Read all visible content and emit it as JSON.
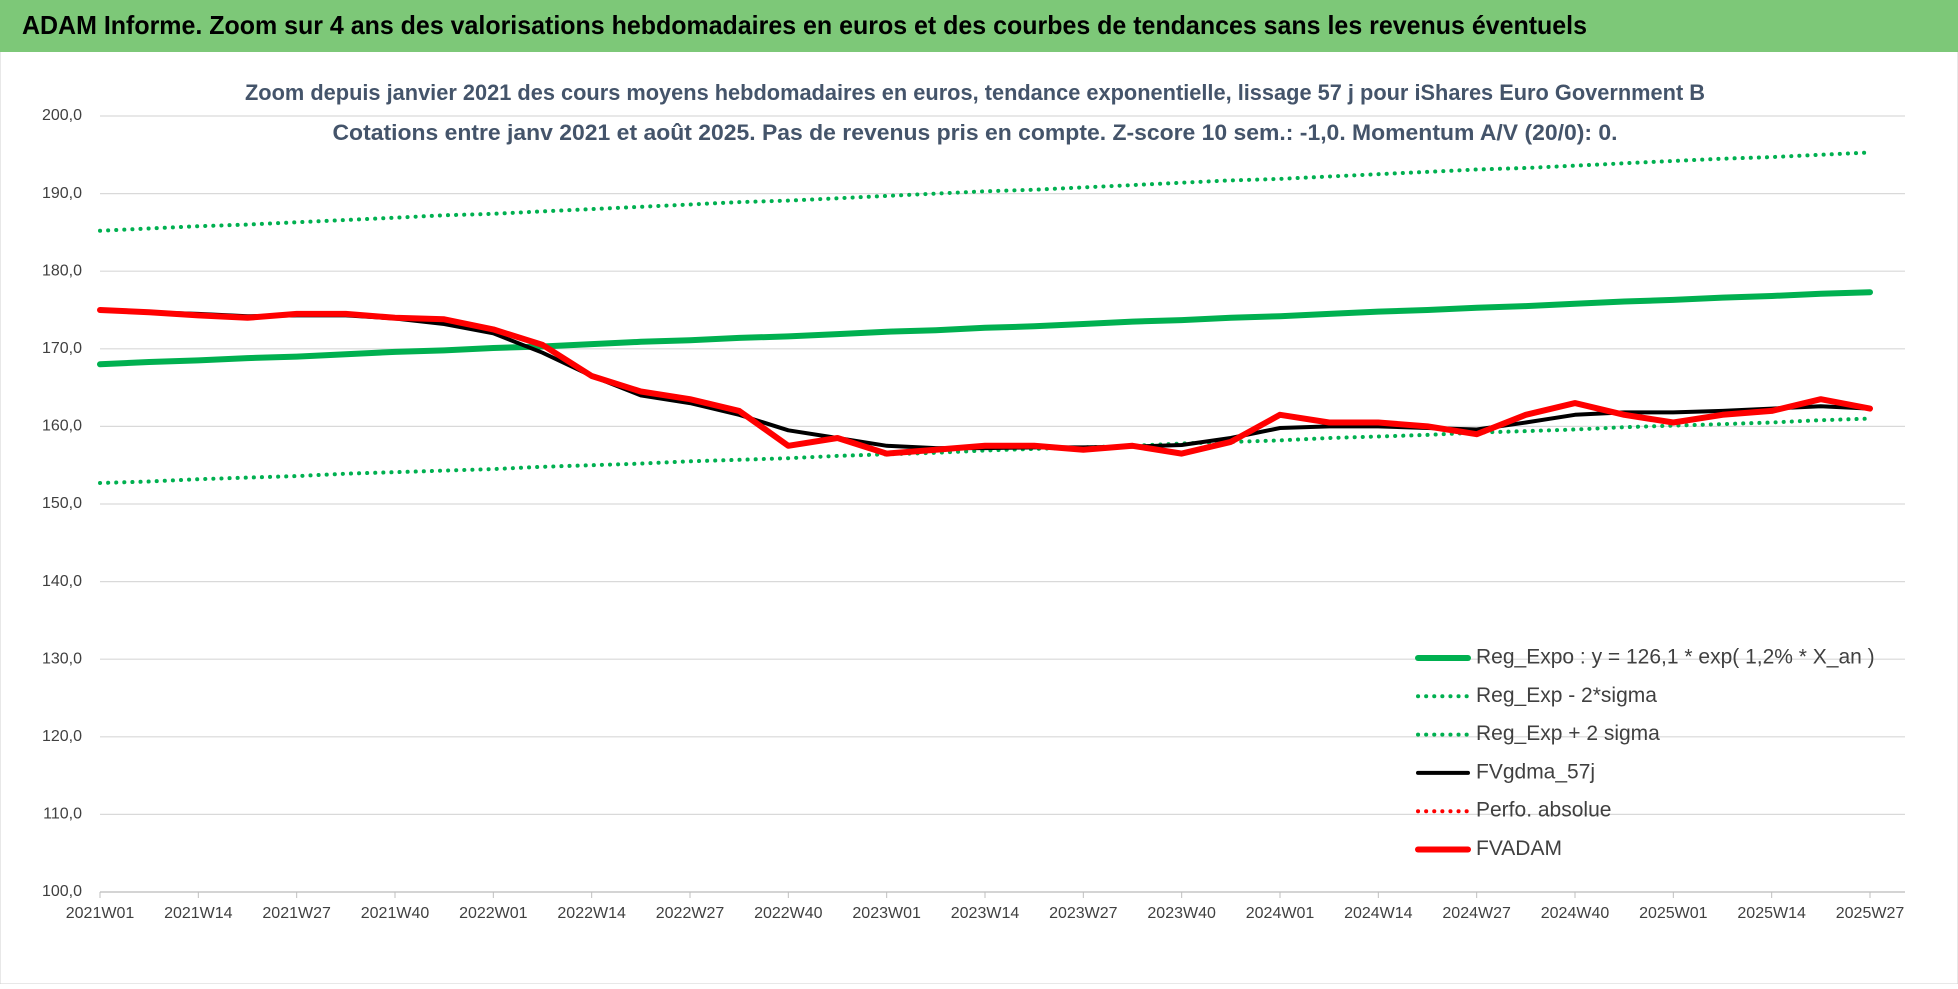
{
  "header": {
    "title": "ADAM Informe. Zoom sur 4 ans des valorisations hebdomadaires en euros et des courbes de tendances sans les revenus éventuels"
  },
  "chart_data": {
    "type": "line",
    "title": "Zoom depuis janvier 2021 des cours moyens hebdomadaires en euros, tendance exponentielle, lissage 57 j pour iShares Euro Government B",
    "subtitle": "Cotations entre janv 2021 et août 2025.  Pas de revenus pris en compte. Z-score 10 sem.: -1,0. Momentum A/V (20/0): 0.",
    "categories": [
      "2021W01",
      null,
      "2021W14",
      null,
      "2021W27",
      null,
      "2021W40",
      null,
      "2022W01",
      null,
      "2022W14",
      null,
      "2022W27",
      null,
      "2022W40",
      null,
      "2023W01",
      null,
      "2023W14",
      null,
      "2023W27",
      null,
      "2023W40",
      null,
      "2024W01",
      null,
      "2024W14",
      null,
      "2024W27",
      null,
      "2024W40",
      null,
      "2025W01",
      null,
      "2025W14",
      null,
      "2025W27"
    ],
    "ylim": [
      100,
      200
    ],
    "yticks": [
      {
        "value": 100,
        "label": "100,0"
      },
      {
        "value": 110,
        "label": "110,0"
      },
      {
        "value": 120,
        "label": "120,0"
      },
      {
        "value": 130,
        "label": "130,0"
      },
      {
        "value": 140,
        "label": "140,0"
      },
      {
        "value": 150,
        "label": "150,0"
      },
      {
        "value": 160,
        "label": "160,0"
      },
      {
        "value": 170,
        "label": "170,0"
      },
      {
        "value": 180,
        "label": "180,0"
      },
      {
        "value": 190,
        "label": "190,0"
      },
      {
        "value": 200,
        "label": "200,0"
      }
    ],
    "grid": true,
    "legend": "bottom-right",
    "series": [
      {
        "name": "Reg_Expo : y = 126,1 * exp( 1,2% *  X_an )",
        "color": "#00b050",
        "line_style": "thick",
        "values": [
          168.0,
          168.3,
          168.5,
          168.8,
          169.0,
          169.3,
          169.6,
          169.8,
          170.1,
          170.3,
          170.6,
          170.9,
          171.1,
          171.4,
          171.6,
          171.9,
          172.2,
          172.4,
          172.7,
          172.9,
          173.2,
          173.5,
          173.7,
          174.0,
          174.2,
          174.5,
          174.8,
          175.0,
          175.3,
          175.5,
          175.8,
          176.1,
          176.3,
          176.6,
          176.8,
          177.1,
          177.3
        ]
      },
      {
        "name": "Reg_Exp - 2*sigma",
        "color": "#00b050",
        "line_style": "dotted",
        "values": [
          152.7,
          152.9,
          153.2,
          153.4,
          153.6,
          153.9,
          154.1,
          154.3,
          154.5,
          154.8,
          155.0,
          155.2,
          155.5,
          155.7,
          155.9,
          156.2,
          156.4,
          156.6,
          156.9,
          157.1,
          157.3,
          157.5,
          157.8,
          158.0,
          158.2,
          158.5,
          158.7,
          158.9,
          159.2,
          159.4,
          159.6,
          159.9,
          160.1,
          160.3,
          160.5,
          160.8,
          161.0
        ]
      },
      {
        "name": "Reg_Exp + 2 sigma",
        "color": "#00b050",
        "line_style": "dotted",
        "values": [
          185.2,
          185.5,
          185.8,
          186.0,
          186.3,
          186.6,
          186.9,
          187.2,
          187.4,
          187.7,
          188.0,
          188.3,
          188.6,
          188.9,
          189.1,
          189.4,
          189.7,
          190.0,
          190.3,
          190.5,
          190.8,
          191.1,
          191.4,
          191.7,
          191.9,
          192.2,
          192.5,
          192.8,
          193.1,
          193.3,
          193.6,
          193.9,
          194.2,
          194.5,
          194.7,
          195.0,
          195.3
        ]
      },
      {
        "name": "FVgdma_57j",
        "color": "#000000",
        "line_style": "solid",
        "values": [
          175.0,
          174.7,
          174.5,
          174.2,
          174.3,
          174.3,
          173.9,
          173.2,
          172.0,
          169.5,
          166.5,
          164.0,
          163.0,
          161.5,
          159.5,
          158.5,
          157.5,
          157.2,
          157.2,
          157.3,
          157.3,
          157.4,
          157.6,
          158.5,
          159.8,
          160.0,
          160.0,
          159.8,
          159.6,
          160.5,
          161.5,
          161.8,
          161.8,
          162.0,
          162.3,
          162.6,
          162.3
        ]
      },
      {
        "name": "Perfo. absolue",
        "color": "#ff0000",
        "line_style": "dotted",
        "values": [
          175.0,
          174.7,
          174.3,
          174.0,
          174.5,
          174.5,
          174.0,
          173.8,
          172.5,
          170.5,
          166.5,
          164.5,
          163.5,
          162.0,
          157.5,
          158.5,
          156.5,
          157.0,
          157.5,
          157.5,
          157.0,
          157.5,
          156.5,
          158.0,
          161.5,
          160.5,
          160.5,
          160.0,
          159.0,
          161.5,
          163.0,
          161.5,
          160.5,
          161.5,
          162.0,
          163.5,
          162.3
        ]
      },
      {
        "name": "FVADAM",
        "color": "#ff0000",
        "line_style": "thick",
        "values": [
          175.0,
          174.7,
          174.3,
          174.0,
          174.5,
          174.5,
          174.0,
          173.8,
          172.5,
          170.5,
          166.5,
          164.5,
          163.5,
          162.0,
          157.5,
          158.5,
          156.5,
          157.0,
          157.5,
          157.5,
          157.0,
          157.5,
          156.5,
          158.0,
          161.5,
          160.5,
          160.5,
          160.0,
          159.0,
          161.5,
          163.0,
          161.5,
          160.5,
          161.5,
          162.0,
          163.5,
          162.3
        ]
      }
    ]
  }
}
